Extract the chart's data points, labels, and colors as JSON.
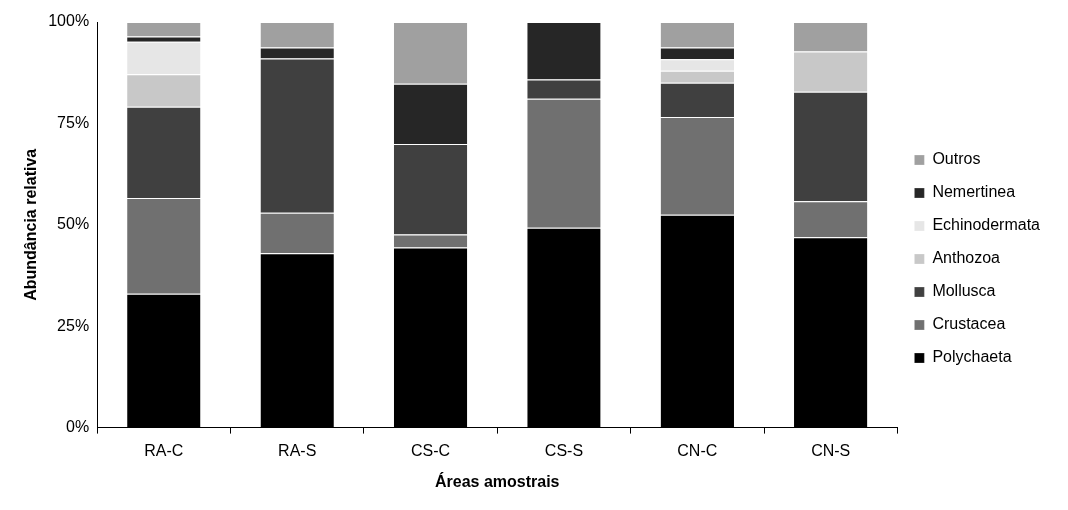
{
  "chart_data": {
    "type": "bar",
    "stacked": true,
    "xlabel": "Áreas amostrais",
    "ylabel": "Abundância relativa",
    "categories": [
      "RA-C",
      "RA-S",
      "CS-C",
      "CS-S",
      "CN-C",
      "CN-S"
    ],
    "series": [
      {
        "name": "Polychaeta",
        "color": "#000000",
        "values": [
          33,
          43,
          44.4,
          49.3,
          52.5,
          46.9
        ]
      },
      {
        "name": "Crustacea",
        "color": "#707070",
        "values": [
          23.6,
          10,
          3.2,
          31.8,
          24.1,
          8.9
        ]
      },
      {
        "name": "Mollusca",
        "color": "#404040",
        "values": [
          22.5,
          38,
          22.3,
          4.7,
          8.4,
          27
        ]
      },
      {
        "name": "Anthozoa",
        "color": "#c8c8c8",
        "values": [
          8,
          0,
          0,
          0,
          3,
          9.9
        ]
      },
      {
        "name": "Echinodermata",
        "color": "#e6e6e6",
        "values": [
          8,
          0,
          0,
          0,
          2.8,
          0
        ]
      },
      {
        "name": "Nemertinea",
        "color": "#262626",
        "values": [
          1.3,
          2.7,
          14.9,
          14.2,
          2.9,
          0
        ]
      },
      {
        "name": "Outros",
        "color": "#a0a0a0",
        "values": [
          3.6,
          6.3,
          15.2,
          0,
          6.3,
          7.3
        ]
      }
    ],
    "ylim": [
      0,
      100
    ],
    "yticks": [
      {
        "value": 0,
        "label": "0%"
      },
      {
        "value": 25,
        "label": "25%"
      },
      {
        "value": 50,
        "label": "50%"
      },
      {
        "value": 75,
        "label": "75%"
      },
      {
        "value": 100,
        "label": "100%"
      }
    ],
    "grid": false,
    "legend": "right"
  }
}
